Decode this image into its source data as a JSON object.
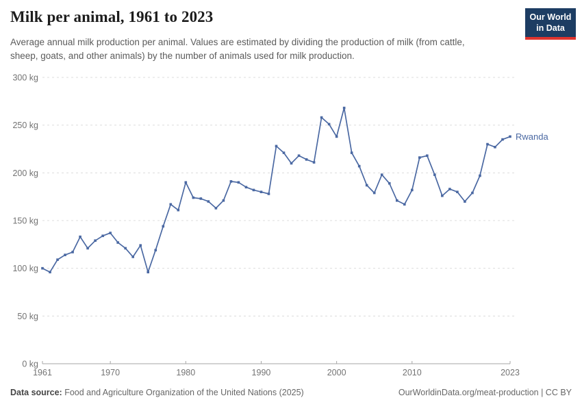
{
  "header": {
    "title": "Milk per animal, 1961 to 2023",
    "subtitle": "Average annual milk production per animal. Values are estimated by dividing the production of milk (from cattle, sheep, goats, and other animals) by the number of animals used for milk production."
  },
  "logo": {
    "line1": "Our World",
    "line2": "in Data",
    "bg_color": "#1d3d63",
    "bar_color": "#e0342e"
  },
  "footer": {
    "source_label": "Data source:",
    "source_text": " Food and Agriculture Organization of the United Nations (2025)",
    "right_text": "OurWorldinData.org/meat-production | CC BY"
  },
  "chart_data": {
    "type": "line",
    "title": "Milk per animal, 1961 to 2023",
    "xlabel": "",
    "ylabel": "",
    "y_unit": " kg",
    "ylim": [
      0,
      300
    ],
    "xlim": [
      1961,
      2023
    ],
    "y_ticks": [
      0,
      50,
      100,
      150,
      200,
      250,
      300
    ],
    "x_ticks": [
      1961,
      1970,
      1980,
      1990,
      2000,
      2010,
      2023
    ],
    "grid": "horizontal-dashed",
    "legend_position": "end-of-line-label",
    "line_color": "#4a68a2",
    "axis_color": "#a5a5a5",
    "grid_color": "#dcdcdc",
    "tick_label_color": "#737373",
    "series": [
      {
        "name": "Rwanda",
        "start_year": 1961,
        "values": [
          100,
          96,
          109,
          114,
          117,
          133,
          121,
          129,
          134,
          137,
          127,
          121,
          112,
          124,
          96,
          119,
          144,
          167,
          161,
          190,
          174,
          173,
          170,
          163,
          171,
          191,
          190,
          185,
          182,
          180,
          178,
          228,
          221,
          210,
          218,
          214,
          211,
          258,
          251,
          238,
          268,
          221,
          207,
          187,
          179,
          198,
          189,
          171,
          167,
          182,
          216,
          218,
          198,
          176,
          183,
          180,
          170,
          179,
          197,
          230,
          227,
          235,
          238
        ]
      }
    ]
  }
}
